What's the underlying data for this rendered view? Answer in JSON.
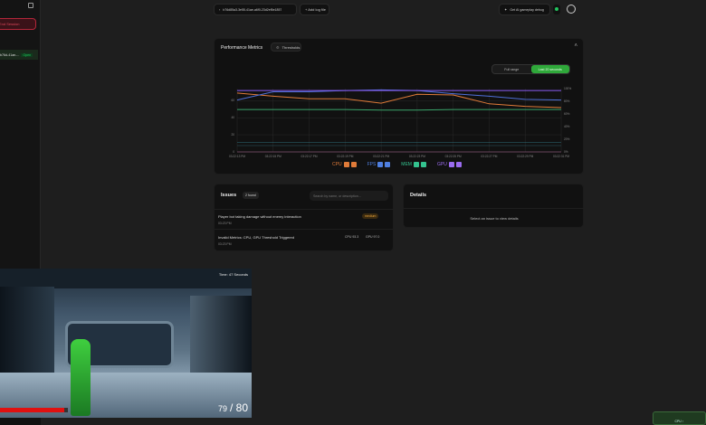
{
  "sidebar": {
    "end_session_label": "End Session",
    "session_item_label": "b76d-41ae-...",
    "session_item_badge": "Open"
  },
  "topbar": {
    "session_id": "b76d85a3-3e55-41ae-a6f0-23d2ef5e1857",
    "add_log_label": "+ Add log file",
    "ai_debug_label": "Get AI gameplay debug",
    "status_color": "#22c55e"
  },
  "performance": {
    "title": "Performance Metrics",
    "thresholds_label": "Thresholds",
    "range_options": [
      "Full range",
      "Last 20 seconds"
    ],
    "selected_range": "Last 20 seconds"
  },
  "chart_data": {
    "type": "line",
    "x": [
      "03:22:13 PM",
      "03:22:15 PM",
      "03:22:17 PM",
      "03:22:19 PM",
      "03:22:21 PM",
      "03:22:23 PM",
      "03:22:25 PM",
      "03:22:27 PM",
      "03:22:29 PM",
      "03:22:31 PM"
    ],
    "left_ticks": [
      "0",
      "20",
      "40",
      "60"
    ],
    "left_ylim": [
      0,
      74
    ],
    "right_ticks": [
      "0%",
      "20%",
      "40%",
      "60%",
      "80%",
      "100%"
    ],
    "right_ylim": [
      0,
      100
    ],
    "grid": true,
    "series": [
      {
        "name": "CPU",
        "color": "#e07b39",
        "axis": "right",
        "values": [
          93,
          88,
          84,
          84,
          77,
          91,
          90,
          76,
          72,
          70
        ]
      },
      {
        "name": "FPS",
        "color": "#4f6fd8",
        "axis": "right",
        "values": [
          82,
          95,
          95,
          97,
          98,
          97,
          92,
          88,
          83,
          82
        ]
      },
      {
        "name": "MEM",
        "color": "#3aa56b",
        "axis": "right",
        "values": [
          67,
          67,
          67,
          67,
          66,
          66,
          67,
          67,
          67,
          67
        ]
      },
      {
        "name": "GPU",
        "color": "#8b5cf6",
        "axis": "right",
        "values": [
          97,
          97,
          97,
          97,
          97,
          97,
          97,
          97,
          97,
          97
        ]
      }
    ],
    "legend": [
      {
        "name": "CPU",
        "color": "#e07b39"
      },
      {
        "name": "FPS",
        "color": "#4f7fe0"
      },
      {
        "name": "MEM",
        "color": "#34c38f"
      },
      {
        "name": "GPU",
        "color": "#9b6cf0"
      }
    ],
    "legend_placement": "bottom"
  },
  "issues": {
    "title": "Issues",
    "count": "2 found",
    "search_placeholder": "Search by name, or description...",
    "items": [
      {
        "title": "Player bot taking damage without enemy interaction",
        "time": "03:23 PM",
        "badge": "medium"
      },
      {
        "title": "Invalid Metrics: CPU, GPU Threshold Triggered",
        "time": "03:23 PM",
        "cpu": "CPU 93.3",
        "gpu": "GPU 97.0"
      }
    ]
  },
  "details": {
    "title": "Details",
    "empty": "Select an issue to view details"
  },
  "game": {
    "timer": "Time: 47 Seconds",
    "ammo_current": "79",
    "ammo_total": "/ 80",
    "health": 0.27
  },
  "corner_button": {
    "label": "CPU ↑"
  }
}
